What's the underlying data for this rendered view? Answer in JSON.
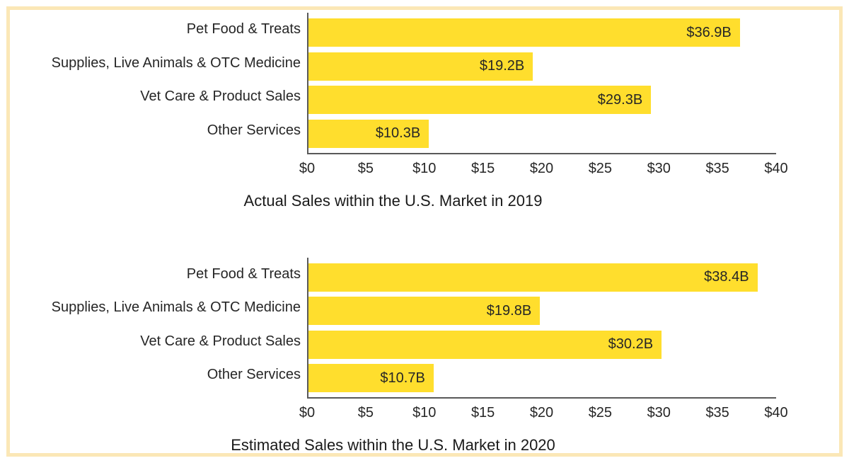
{
  "figure": {
    "frame_border_color": "#FBE7B6",
    "background_color": "#FFFFFF"
  },
  "colors": {
    "bar": "#FFDE2D",
    "axis_line": "#595959",
    "label_text": "#262626"
  },
  "chart_data": [
    {
      "type": "bar",
      "orientation": "horizontal",
      "title": "Actual Sales within the U.S. Market in 2019",
      "categories": [
        "Pet Food & Treats",
        "Supplies, Live Animals & OTC Medicine",
        "Vet Care & Product Sales",
        "Other Services"
      ],
      "values": [
        36.9,
        19.2,
        29.3,
        10.3
      ],
      "value_labels": [
        "$36.9B",
        "$19.2B",
        "$29.3B",
        "$10.3B"
      ],
      "ticks": [
        "$0",
        "$5",
        "$10",
        "$15",
        "$20",
        "$25",
        "$30",
        "$35",
        "$40"
      ],
      "xlim": [
        0,
        40
      ],
      "grid": false,
      "legend": false,
      "bar_color": "#FFDE2D"
    },
    {
      "type": "bar",
      "orientation": "horizontal",
      "title": "Estimated Sales within the U.S. Market in 2020",
      "categories": [
        "Pet Food & Treats",
        "Supplies, Live Animals & OTC Medicine",
        "Vet Care & Product Sales",
        "Other Services"
      ],
      "values": [
        38.4,
        19.8,
        30.2,
        10.7
      ],
      "value_labels": [
        "$38.4B",
        "$19.8B",
        "$30.2B",
        "$10.7B"
      ],
      "ticks": [
        "$0",
        "$5",
        "$10",
        "$15",
        "$20",
        "$25",
        "$30",
        "$35",
        "$40"
      ],
      "xlim": [
        0,
        40
      ],
      "grid": false,
      "legend": false,
      "bar_color": "#FFDE2D"
    }
  ]
}
